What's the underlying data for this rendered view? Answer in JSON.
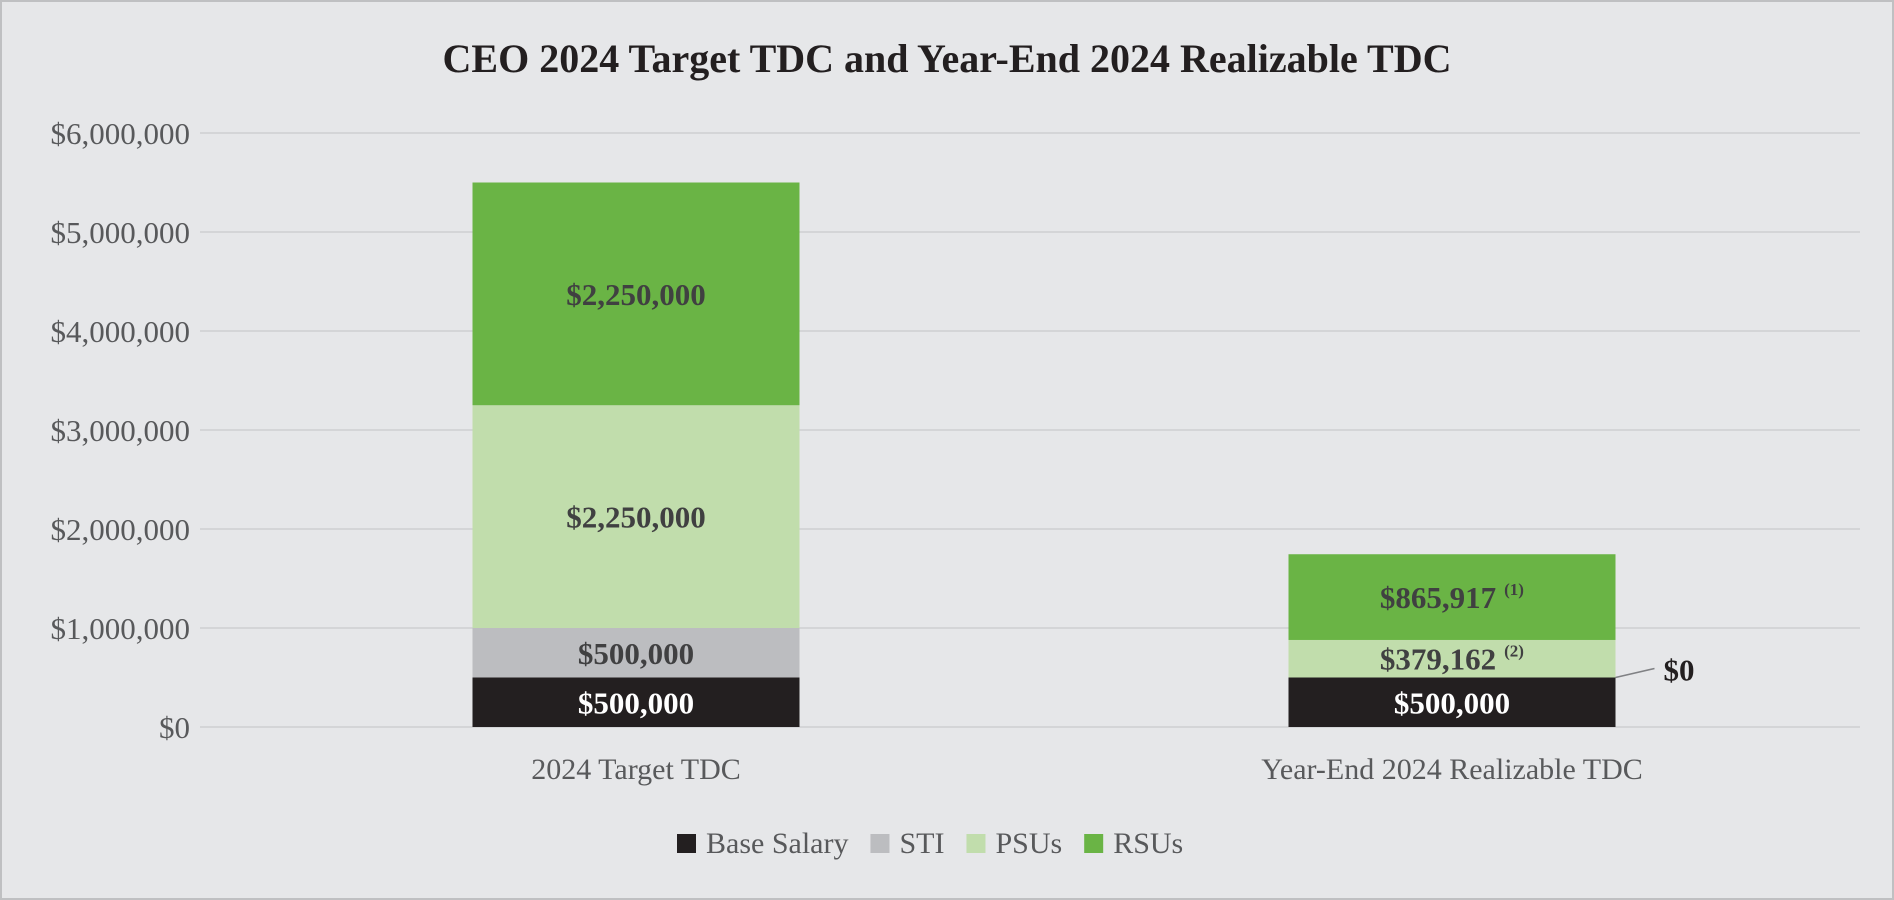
{
  "chart_data": {
    "type": "bar",
    "stacked": true,
    "title": "CEO 2024 Target TDC and Year-End 2024 Realizable TDC",
    "categories": [
      "2024 Target TDC",
      "Year-End 2024 Realizable TDC"
    ],
    "series": [
      {
        "name": "Base Salary",
        "color": "#231f20",
        "values": [
          500000,
          500000
        ],
        "labels": [
          "$500,000",
          "$500,000"
        ],
        "label_color": "#ffffff"
      },
      {
        "name": "STI",
        "color": "#bcbdc0",
        "values": [
          500000,
          0
        ],
        "labels": [
          "$500,000",
          "$0"
        ],
        "label_color": "#404041"
      },
      {
        "name": "PSUs",
        "color": "#c1ddac",
        "values": [
          2250000,
          379162
        ],
        "labels": [
          "$2,250,000",
          "$379,162"
        ],
        "footnotes": [
          "",
          "(2)"
        ],
        "label_color": "#404041"
      },
      {
        "name": "RSUs",
        "color": "#6ab445",
        "values": [
          2250000,
          865917
        ],
        "labels": [
          "$2,250,000",
          "$865,917"
        ],
        "footnotes": [
          "",
          "(1)"
        ],
        "label_color": "#404041"
      }
    ],
    "ylim": [
      0,
      6000000
    ],
    "yticks": [
      0,
      1000000,
      2000000,
      3000000,
      4000000,
      5000000,
      6000000
    ],
    "ytick_labels": [
      "$0",
      "$1,000,000",
      "$2,000,000",
      "$3,000,000",
      "$4,000,000",
      "$5,000,000",
      "$6,000,000"
    ],
    "xlabel": "",
    "ylabel": "",
    "grid": true,
    "legend_position": "bottom"
  }
}
